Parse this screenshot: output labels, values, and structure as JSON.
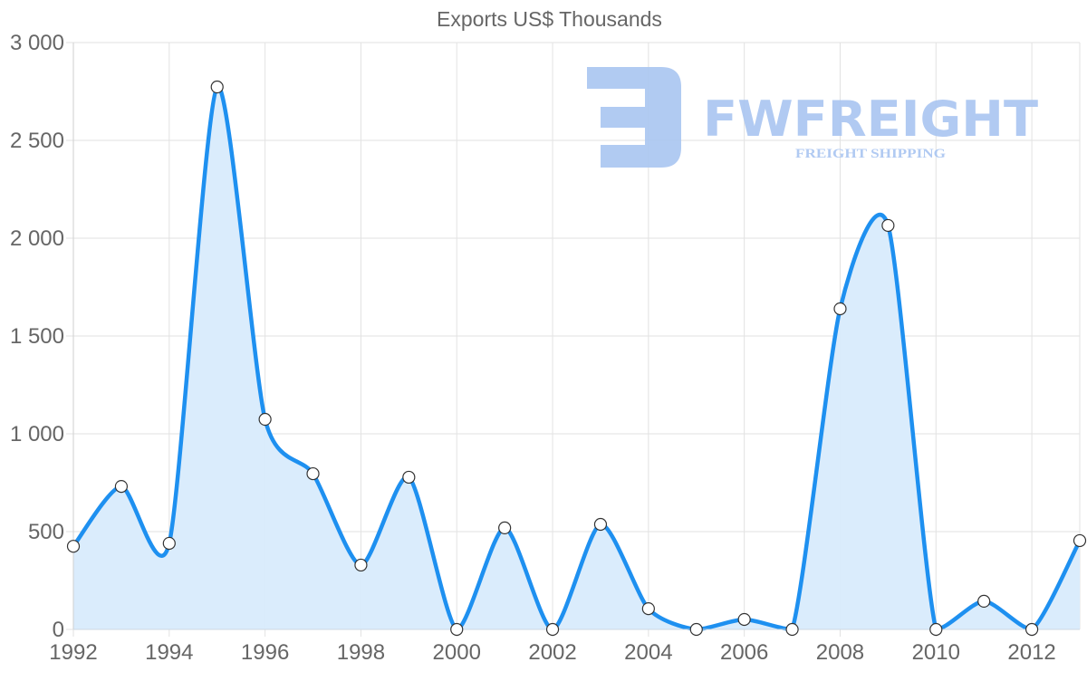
{
  "chart_data": {
    "type": "area",
    "title": "Exports US$ Thousands",
    "xlabel": "",
    "ylabel": "",
    "x": [
      1992,
      1993,
      1994,
      1995,
      1996,
      1997,
      1998,
      1999,
      2000,
      2001,
      2002,
      2003,
      2004,
      2005,
      2006,
      2007,
      2008,
      2009,
      2010,
      2011,
      2012,
      2013
    ],
    "series": [
      {
        "name": "Exports US$ Thousands",
        "values": [
          425,
          731,
          440,
          2773,
          1074,
          796,
          329,
          778,
          0,
          519,
          0,
          537,
          106,
          0,
          51,
          0,
          1639,
          2065,
          0,
          144,
          0,
          454
        ]
      }
    ],
    "ylim": [
      0,
      3000
    ],
    "y_ticks": [
      0,
      500,
      1000,
      1500,
      2000,
      2500,
      3000
    ],
    "y_tick_labels": [
      "0",
      "500",
      "1 000",
      "1 500",
      "2 000",
      "2 500",
      "3 000"
    ],
    "x_tick_labels": [
      "1992",
      "1994",
      "1996",
      "1998",
      "2000",
      "2002",
      "2004",
      "2006",
      "2008",
      "2010",
      "2012"
    ],
    "grid": true,
    "legend": "none",
    "colors": {
      "line": "#1e90f0",
      "fill": "#d8ebfc",
      "point_fill": "#ffffff",
      "point_stroke": "#333333",
      "grid": "#e2e2e2",
      "text": "#666666"
    }
  },
  "watermark": {
    "brand": "FWFREIGHT",
    "tagline": "FREIGHT SHIPPING",
    "color": "#a9c5f1"
  }
}
